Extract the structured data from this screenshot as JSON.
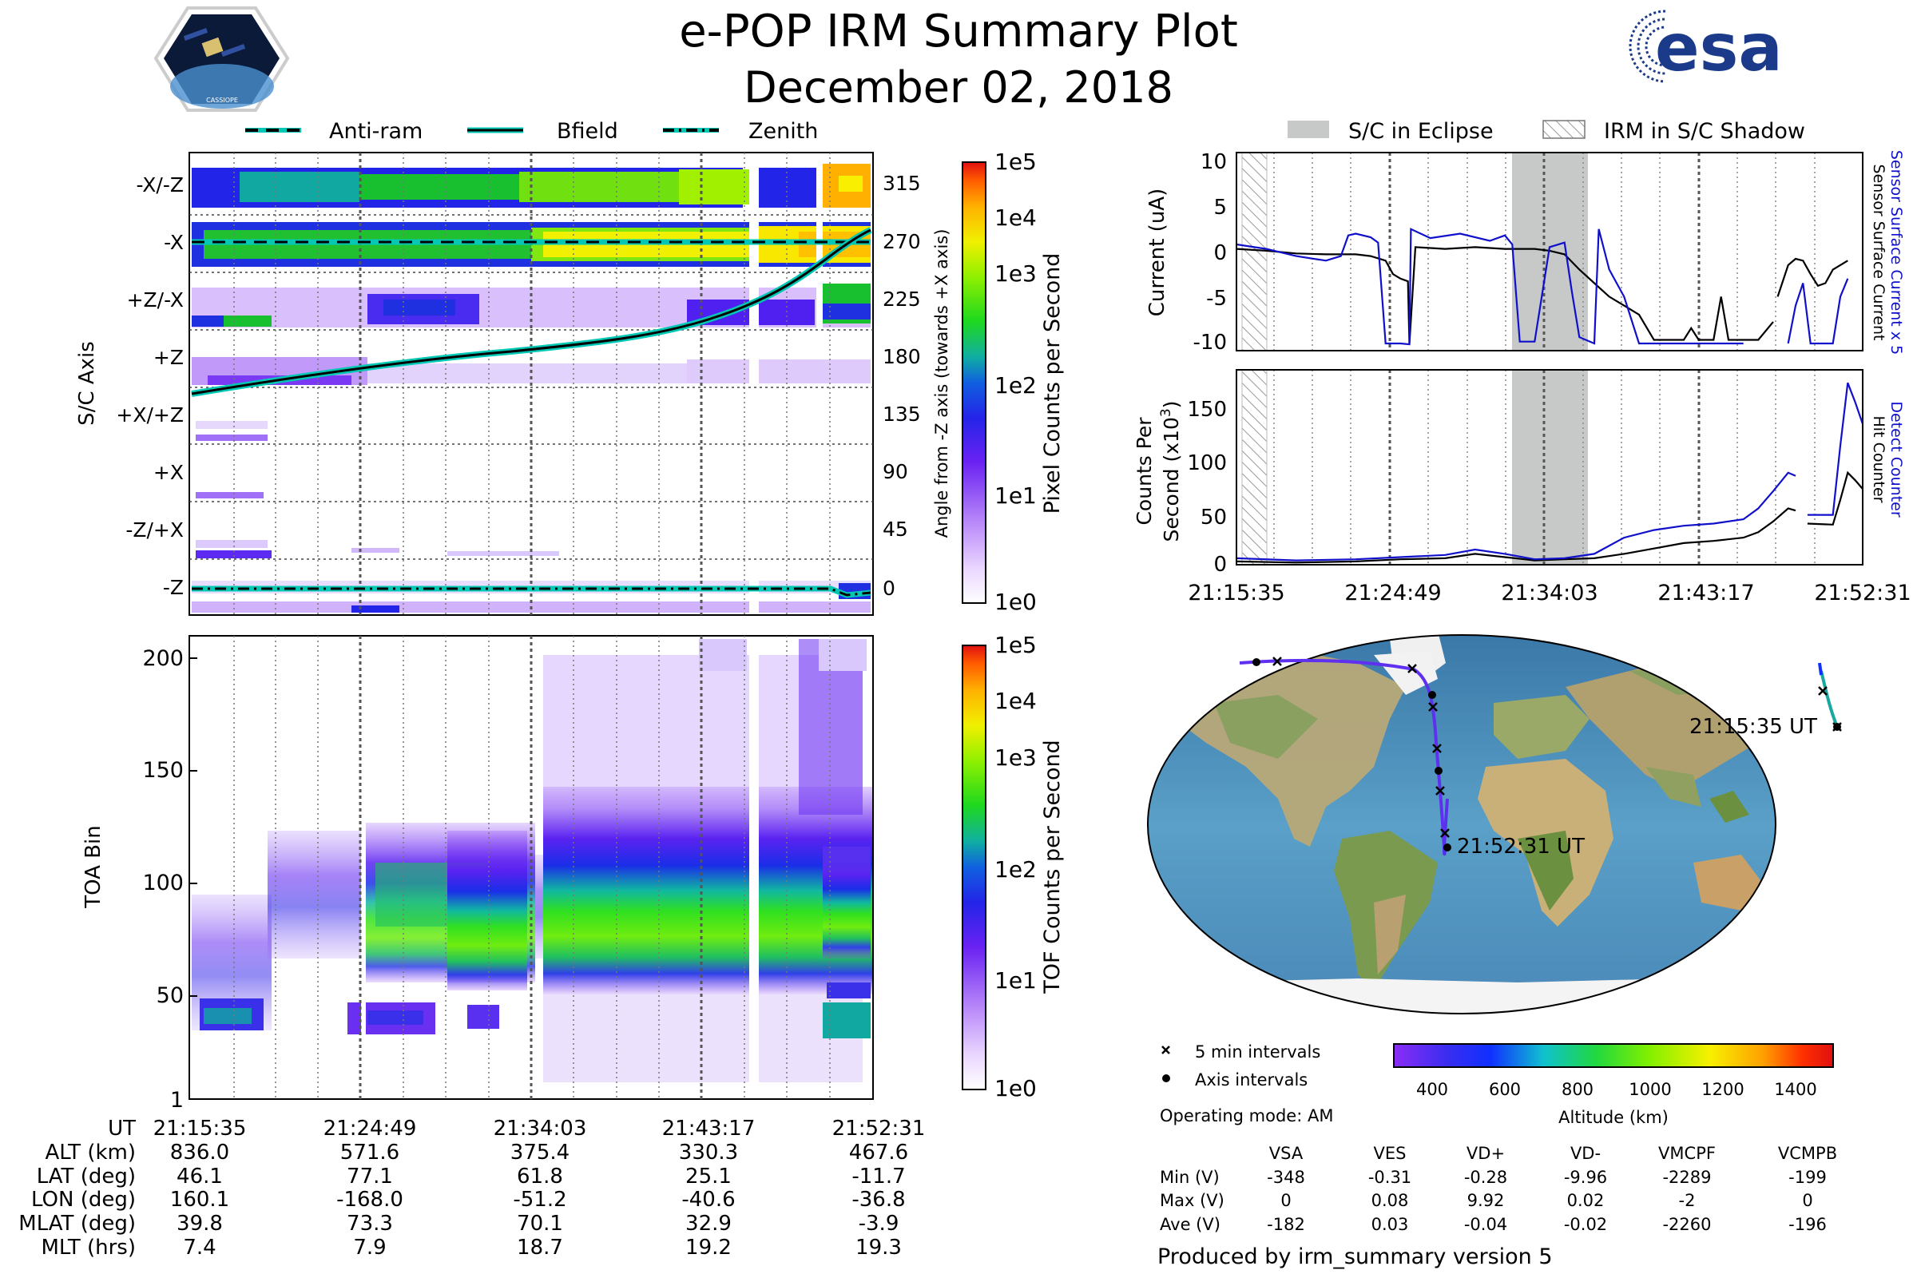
{
  "header": {
    "title": "e-POP IRM Summary Plot",
    "date": "December 02, 2018",
    "left_logo_caption": "CASSIOPE",
    "right_logo_text": "esa"
  },
  "colors": {
    "angle_line": "#00c8b4",
    "cmap": [
      "#ffffff",
      "#e9d5ff",
      "#c084fc",
      "#8b2df5",
      "#4a1cf0",
      "#1f1fe8",
      "#1058e8",
      "#10b0a0",
      "#1ed81e",
      "#90f000",
      "#f0f000",
      "#ffb000",
      "#ff5a00",
      "#e01010"
    ],
    "altitude_cmap": [
      "#8b2df5",
      "#3a2df0",
      "#1030ff",
      "#10c0d0",
      "#20d840",
      "#80f000",
      "#f8f000",
      "#ffa000",
      "#ff3000",
      "#e01010"
    ],
    "current_series": "#000000",
    "current_x5_series": "#1010cc",
    "eclipse_fill": "#c6c9c8",
    "orbit_track": "#6030f0",
    "orbit_track_end": "#18a8a0"
  },
  "sc_axis_panel": {
    "legend": [
      "Anti-ram",
      "Bfield",
      "Zenith"
    ],
    "ylabel": "S/C Axis",
    "y2label": "Angle from -Z axis (towards +X axis)",
    "axis_labels": [
      "-X/-Z",
      "-X",
      "+Z/-X",
      "+Z",
      "+X/+Z",
      "+X",
      "-Z/+X",
      "-Z"
    ],
    "angle_ticks": [
      "315",
      "270",
      "225",
      "180",
      "135",
      "90",
      "45",
      "0"
    ],
    "colorbar_label": "Pixel Counts per Second",
    "colorbar_ticks": [
      "1e5",
      "1e4",
      "1e3",
      "1e2",
      "1e1",
      "1e0"
    ]
  },
  "toa_panel": {
    "ylabel": "TOA Bin",
    "yticks": [
      "200",
      "150",
      "100",
      "50",
      "1"
    ],
    "colorbar_label": "TOF Counts per Second",
    "colorbar_ticks": [
      "1e5",
      "1e4",
      "1e3",
      "1e2",
      "1e1",
      "1e0"
    ]
  },
  "ephemeris": {
    "labels": [
      "UT",
      "ALT (km)",
      "LAT (deg)",
      "LON (deg)",
      "MLAT (deg)",
      "MLT (hrs)"
    ],
    "columns": [
      [
        "21:15:35",
        "836.0",
        "46.1",
        "160.1",
        "39.8",
        "7.4"
      ],
      [
        "21:24:49",
        "571.6",
        "77.1",
        "-168.0",
        "73.3",
        "7.9"
      ],
      [
        "21:34:03",
        "375.4",
        "61.8",
        "-51.2",
        "70.1",
        "18.7"
      ],
      [
        "21:43:17",
        "330.3",
        "25.1",
        "-40.6",
        "32.9",
        "19.2"
      ],
      [
        "21:52:31",
        "467.6",
        "-11.7",
        "-36.8",
        "-3.9",
        "19.3"
      ]
    ]
  },
  "right_panels": {
    "legend": [
      "S/C in Eclipse",
      "IRM in S/C Shadow"
    ],
    "xticks": [
      "21:15:35",
      "21:24:49",
      "21:34:03",
      "21:43:17",
      "21:52:31"
    ]
  },
  "chart_data": [
    {
      "type": "line",
      "title": "Current",
      "ylabel": "Current (uA)",
      "ylim": [
        -11,
        11
      ],
      "yticks": [
        "10",
        "5",
        "0",
        "-5",
        "-10"
      ],
      "right_labels": [
        "Sensor Surface Current x 5",
        "Sensor Surface Current"
      ],
      "series": [
        {
          "name": "Sensor Surface Current",
          "color": "#000000",
          "points": [
            [
              0,
              0.3
            ],
            [
              2,
              0.1
            ],
            [
              4,
              -0.2
            ],
            [
              6,
              -0.3
            ],
            [
              8,
              -0.3
            ],
            [
              9,
              -0.5
            ],
            [
              10,
              -1.0
            ],
            [
              10.5,
              -2.5
            ],
            [
              11,
              -3.0
            ],
            [
              11.5,
              -3.3
            ],
            [
              11.6,
              -10.3
            ],
            [
              12,
              0.5
            ],
            [
              14,
              0.3
            ],
            [
              16,
              0.5
            ],
            [
              18,
              0.3
            ],
            [
              20,
              0.3
            ],
            [
              21,
              0.1
            ],
            [
              22,
              -0.3
            ],
            [
              23,
              -2.0
            ],
            [
              24,
              -3.5
            ],
            [
              25,
              -5.0
            ],
            [
              26,
              -6.0
            ],
            [
              27,
              -7.0
            ],
            [
              28,
              -9.8
            ],
            [
              29,
              -9.8
            ],
            [
              30,
              -9.8
            ],
            [
              30.5,
              -8.5
            ],
            [
              31,
              -9.8
            ],
            [
              32,
              -9.8
            ],
            [
              32.5,
              -5.0
            ],
            [
              33,
              -9.8
            ],
            [
              34,
              -9.8
            ],
            [
              35,
              -9.8
            ],
            [
              36,
              -7.8
            ],
            [
              null,
              null
            ],
            [
              36.3,
              -5.0
            ],
            [
              37,
              -1.5
            ],
            [
              37.5,
              -0.8
            ],
            [
              38,
              -1.0
            ],
            [
              38.5,
              -2.5
            ],
            [
              39,
              -3.8
            ],
            [
              39.5,
              -3.5
            ],
            [
              40,
              -2.0
            ],
            [
              41,
              -1.0
            ]
          ]
        },
        {
          "name": "Sensor Surface Current x 5",
          "color": "#1010cc",
          "points": [
            [
              0,
              0.8
            ],
            [
              2,
              0.3
            ],
            [
              4,
              -0.5
            ],
            [
              6,
              -1.0
            ],
            [
              7,
              -0.5
            ],
            [
              7.5,
              1.8
            ],
            [
              8,
              2.0
            ],
            [
              9,
              1.6
            ],
            [
              9.5,
              1.0
            ],
            [
              10,
              -10.2
            ],
            [
              10.5,
              -10.2
            ],
            [
              11,
              -10.2
            ],
            [
              11.6,
              -10.3
            ],
            [
              11.7,
              2.5
            ],
            [
              13,
              1.5
            ],
            [
              15,
              2.0
            ],
            [
              17,
              1.2
            ],
            [
              18,
              1.8
            ],
            [
              18.5,
              0.8
            ],
            [
              19,
              -10.0
            ],
            [
              20,
              -10.0
            ],
            [
              21,
              0.5
            ],
            [
              22,
              1.0
            ],
            [
              22.5,
              -4.5
            ],
            [
              23,
              -9.5
            ],
            [
              24,
              -10.2
            ],
            [
              24.3,
              2.5
            ],
            [
              25,
              -2.0
            ],
            [
              26,
              -5.0
            ],
            [
              27,
              -10.2
            ],
            [
              28,
              -10.2
            ],
            [
              34,
              -10.2
            ],
            [
              null,
              null
            ],
            [
              37,
              -10.2
            ],
            [
              37.5,
              -6.0
            ],
            [
              38,
              -3.5
            ],
            [
              38.5,
              -10.2
            ],
            [
              39,
              -10.2
            ],
            [
              40,
              -10.2
            ],
            [
              40.5,
              -5.0
            ],
            [
              41,
              -3.0
            ]
          ]
        }
      ]
    },
    {
      "type": "line",
      "title": "Counts Per Second",
      "ylabel": "Counts Per Second (x10^3)",
      "ylim": [
        0,
        180
      ],
      "yticks": [
        "150",
        "100",
        "50",
        "0"
      ],
      "right_labels": [
        "Detect Counter",
        "Hit Counter"
      ],
      "series": [
        {
          "name": "Hit Counter",
          "color": "#000000",
          "points": [
            [
              0,
              3
            ],
            [
              4,
              2
            ],
            [
              8,
              3
            ],
            [
              11,
              5
            ],
            [
              14,
              6
            ],
            [
              16,
              10
            ],
            [
              18,
              7
            ],
            [
              20,
              4
            ],
            [
              22,
              5
            ],
            [
              24,
              6
            ],
            [
              26,
              10
            ],
            [
              28,
              15
            ],
            [
              30,
              20
            ],
            [
              32,
              22
            ],
            [
              34,
              25
            ],
            [
              35,
              30
            ],
            [
              36,
              40
            ],
            [
              37,
              52
            ],
            [
              37.5,
              50
            ],
            [
              null,
              null
            ],
            [
              38.3,
              38
            ],
            [
              40,
              37
            ],
            [
              40.5,
              60
            ],
            [
              41,
              85
            ],
            [
              41.5,
              78
            ],
            [
              42,
              70
            ]
          ]
        },
        {
          "name": "Detect Counter",
          "color": "#1010cc",
          "points": [
            [
              0,
              6
            ],
            [
              4,
              4
            ],
            [
              8,
              5
            ],
            [
              11,
              7
            ],
            [
              14,
              9
            ],
            [
              16,
              14
            ],
            [
              18,
              10
            ],
            [
              20,
              5
            ],
            [
              22,
              6
            ],
            [
              24,
              10
            ],
            [
              26,
              25
            ],
            [
              28,
              32
            ],
            [
              30,
              36
            ],
            [
              32,
              38
            ],
            [
              34,
              42
            ],
            [
              35,
              52
            ],
            [
              36,
              68
            ],
            [
              37,
              85
            ],
            [
              37.5,
              82
            ],
            [
              null,
              null
            ],
            [
              38.3,
              46
            ],
            [
              40,
              46
            ],
            [
              40.5,
              110
            ],
            [
              41,
              168
            ],
            [
              41.5,
              150
            ],
            [
              42,
              130
            ]
          ]
        }
      ]
    }
  ],
  "map_panel": {
    "start_label": "21:15:35 UT",
    "end_label": "21:52:31 UT",
    "legend": [
      "5 min intervals",
      "Axis intervals"
    ],
    "operating_mode": "Operating mode: AM",
    "altitude_label": "Altitude (km)",
    "altitude_ticks": [
      "400",
      "600",
      "800",
      "1000",
      "1200",
      "1400"
    ]
  },
  "voltage_table": {
    "headers": [
      "VSA",
      "VES",
      "VD+",
      "VD-",
      "VMCPF",
      "VCMPB"
    ],
    "rows": [
      {
        "label": "Min (V)",
        "values": [
          "-348",
          "-0.31",
          "-0.28",
          "-9.96",
          "-2289",
          "-199"
        ]
      },
      {
        "label": "Max (V)",
        "values": [
          "0",
          "0.08",
          "9.92",
          "0.02",
          "-2",
          "0"
        ]
      },
      {
        "label": "Ave (V)",
        "values": [
          "-182",
          "0.03",
          "-0.04",
          "-0.02",
          "-2260",
          "-196"
        ]
      }
    ]
  },
  "footer": "Produced by irm_summary version 5"
}
